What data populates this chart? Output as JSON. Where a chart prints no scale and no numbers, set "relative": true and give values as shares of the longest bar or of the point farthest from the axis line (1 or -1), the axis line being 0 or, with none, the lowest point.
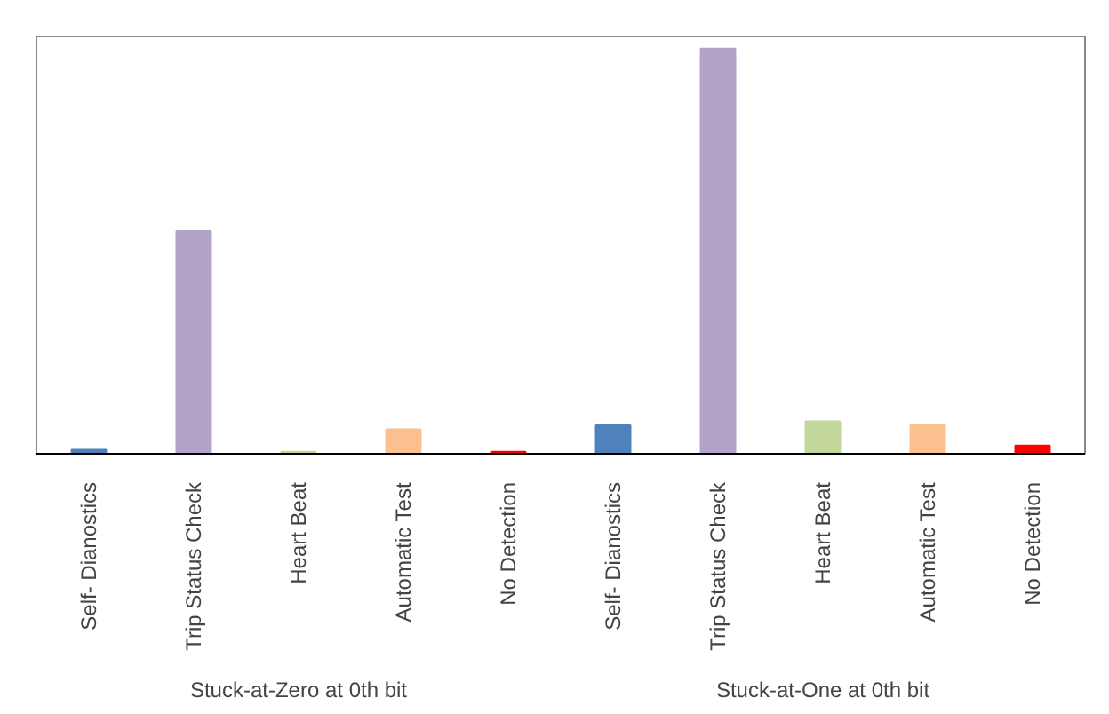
{
  "chart_data": {
    "type": "bar",
    "relative": true,
    "categories": [
      "Self- Dianostics",
      "Trip Status Check",
      "Heart Beat",
      "Automatic Test",
      "No Detection",
      "Self- Dianostics",
      "Trip Status Check",
      "Heart Beat",
      "Automatic Test",
      "No Detection"
    ],
    "values": [
      0.01,
      0.55,
      0.005,
      0.06,
      0.005,
      0.07,
      1,
      0.08,
      0.07,
      0.02
    ],
    "colors": [
      "#4f81bd",
      "#b3a2c7",
      "#c3d69b",
      "#fac090",
      "#ff0000",
      "#4f81bd",
      "#b3a2c7",
      "#c3d69b",
      "#fac090",
      "#ff0000"
    ],
    "annotations": [
      "Stuck-at-Zero at 0th bit",
      "Stuck-at-One at 0th bit"
    ],
    "grid": false
  }
}
